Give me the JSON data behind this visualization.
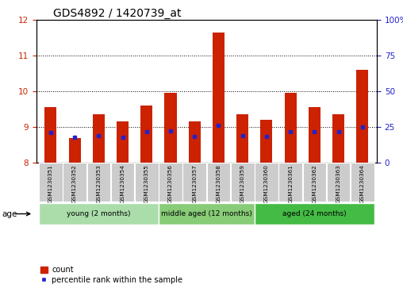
{
  "title": "GDS4892 / 1420739_at",
  "samples": [
    "GSM1230351",
    "GSM1230352",
    "GSM1230353",
    "GSM1230354",
    "GSM1230355",
    "GSM1230356",
    "GSM1230357",
    "GSM1230358",
    "GSM1230359",
    "GSM1230360",
    "GSM1230361",
    "GSM1230362",
    "GSM1230363",
    "GSM1230364"
  ],
  "count_values": [
    9.55,
    8.7,
    9.35,
    9.15,
    9.6,
    9.97,
    9.15,
    11.65,
    9.35,
    9.2,
    9.97,
    9.55,
    9.35,
    10.6
  ],
  "percentile_values": [
    8.85,
    8.72,
    8.75,
    8.72,
    8.88,
    8.9,
    8.73,
    9.05,
    8.75,
    8.73,
    8.87,
    8.87,
    8.87,
    9.0
  ],
  "ylim": [
    8,
    12
  ],
  "yticks_left": [
    8,
    9,
    10,
    11,
    12
  ],
  "yticks_right": [
    0,
    25,
    50,
    75,
    100
  ],
  "bar_color": "#cc2200",
  "dot_color": "#2222cc",
  "bar_width": 0.5,
  "groups": [
    {
      "label": "young (2 months)",
      "start": 0,
      "end": 4,
      "color": "#aaddaa"
    },
    {
      "label": "middle aged (12 months)",
      "start": 5,
      "end": 8,
      "color": "#88cc77"
    },
    {
      "label": "aged (24 months)",
      "start": 9,
      "end": 13,
      "color": "#44bb44"
    }
  ],
  "xlabel_age": "age",
  "legend_count_label": "count",
  "legend_pct_label": "percentile rank within the sample",
  "bg_color": "#ffffff",
  "tick_label_color_left": "#cc2200",
  "tick_label_color_right": "#2222cc",
  "title_fontsize": 10,
  "tick_fontsize": 7.5,
  "sample_box_color": "#cccccc",
  "sample_text_fontsize": 5.2
}
